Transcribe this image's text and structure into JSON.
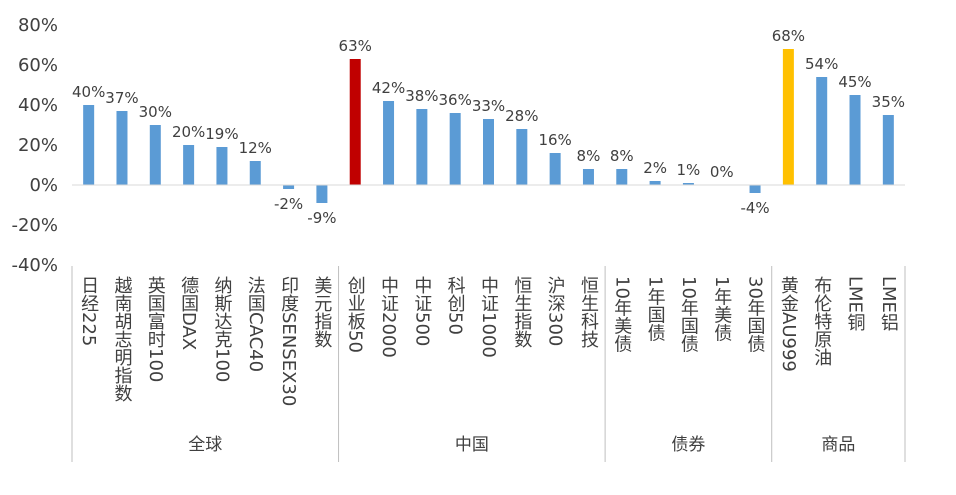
{
  "chart_data": {
    "type": "bar",
    "ylim": [
      -40,
      80
    ],
    "ytick_values": [
      -40,
      -20,
      0,
      20,
      40,
      60,
      80
    ],
    "ytick_labels": [
      "-40%",
      "-20%",
      "0%",
      "20%",
      "40%",
      "60%",
      "80%"
    ],
    "value_suffix": "%",
    "colors": {
      "default": "#5b9bd5",
      "highlight_red": "#c00000",
      "highlight_gold": "#ffc000"
    },
    "categories": [
      "日经225",
      "越南胡志明指数",
      "英国富时100",
      "德国DAX",
      "纳斯达克100",
      "法国CAC40",
      "印度SENSEX30",
      "美元指数",
      "创业板50",
      "中证2000",
      "中证500",
      "科创50",
      "中证1000",
      "恒生指数",
      "沪深300",
      "恒生科技",
      "10年美债",
      "1年国债",
      "10年国债",
      "1年美债",
      "30年国债",
      "黄金AU999",
      "布伦特原油",
      "LME铜",
      "LME铝"
    ],
    "values": [
      40,
      37,
      30,
      20,
      19,
      12,
      -2,
      -9,
      63,
      42,
      38,
      36,
      33,
      28,
      16,
      8,
      8,
      2,
      1,
      0,
      -4,
      68,
      54,
      45,
      35
    ],
    "highlights": {
      "8": "highlight_red",
      "21": "highlight_gold"
    },
    "groups": [
      {
        "name": "全球",
        "start": 0,
        "end": 7
      },
      {
        "name": "中国",
        "start": 8,
        "end": 15
      },
      {
        "name": "债券",
        "start": 16,
        "end": 20
      },
      {
        "name": "商品",
        "start": 21,
        "end": 24
      }
    ]
  }
}
